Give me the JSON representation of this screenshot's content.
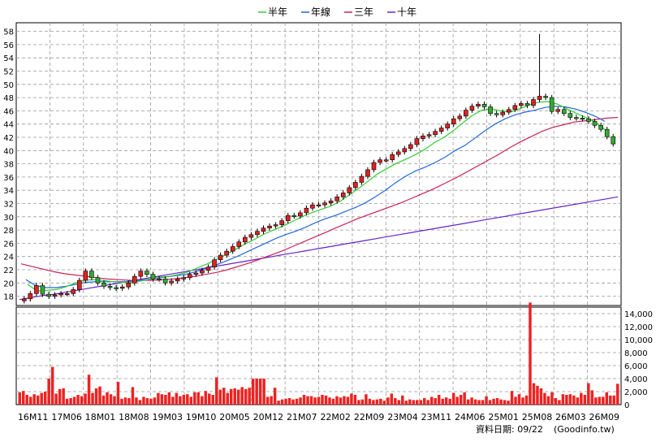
{
  "chart_data": [
    {
      "type": "candlestick",
      "panel": "price",
      "legend": {
        "placement": "top-center",
        "items": [
          {
            "name": "半年",
            "color": "#33cc33"
          },
          {
            "name": "年線",
            "color": "#2266dd"
          },
          {
            "name": "三年",
            "color": "#cc2255"
          },
          {
            "name": "十年",
            "color": "#6622cc"
          }
        ]
      },
      "y_ticks": [
        "58",
        "56",
        "54",
        "52",
        "50",
        "48",
        "46",
        "44",
        "42",
        "40",
        "38",
        "36",
        "34",
        "32",
        "30",
        "28",
        "26",
        "24",
        "22",
        "20",
        "18"
      ],
      "ylim": [
        16.6,
        59.3
      ],
      "grid": true,
      "up_color": "#dd2222",
      "down_color": "#33aa33",
      "prices": [
        17.6,
        18.4,
        19.6,
        18.3,
        18.0,
        18.2,
        18.4,
        18.4,
        19.0,
        20.4,
        21.8,
        20.8,
        20.0,
        19.5,
        19.3,
        19.2,
        19.4,
        20.0,
        21.0,
        21.8,
        21.3,
        20.6,
        20.6,
        20.0,
        20.3,
        20.6,
        20.8,
        21.3,
        21.5,
        21.9,
        22.4,
        23.5,
        24.2,
        24.8,
        25.5,
        26.2,
        26.9,
        27.3,
        27.8,
        28.3,
        28.6,
        28.8,
        29.4,
        30.2,
        30.1,
        30.6,
        31.3,
        31.8,
        31.8,
        32.1,
        32.4,
        33.0,
        33.6,
        34.4,
        35.2,
        36.1,
        37.1,
        38.2,
        38.6,
        38.6,
        39.4,
        39.8,
        40.3,
        40.9,
        41.8,
        42.2,
        42.4,
        42.9,
        43.4,
        44.0,
        44.8,
        45.2,
        46.1,
        46.7,
        47.0,
        46.6,
        45.6,
        45.4,
        45.8,
        46.2,
        46.8,
        47.1,
        46.8,
        47.7,
        48.2,
        48.0,
        45.9,
        46.2,
        45.6,
        45.0,
        44.9,
        44.8,
        44.4,
        43.8,
        43.2,
        42.1,
        41.0
      ],
      "ma_half_year": [
        19.8,
        18.8,
        18.9,
        19.0,
        19.4,
        20.0,
        20.4,
        20.5,
        20.4,
        20.2,
        20.1,
        20.1,
        20.3,
        20.6,
        20.9,
        21.0,
        21.3,
        21.7,
        22.3,
        22.9,
        23.6,
        24.3,
        25.1,
        25.9,
        26.6,
        27.4,
        28.0,
        28.6,
        29.3,
        30.0,
        30.6,
        31.1,
        31.6,
        32.3,
        33.3,
        34.3,
        35.4,
        36.5,
        37.3,
        38.1,
        38.7,
        39.4,
        40.2,
        41.2,
        42.0,
        43.0,
        44.2,
        45.3,
        46.1,
        46.3,
        46.0,
        45.8,
        46.3,
        46.9,
        47.3,
        47.4,
        47.0,
        46.3,
        45.6,
        45.0,
        44.3,
        43.2
      ],
      "ma_year": [
        20.5,
        19.6,
        19.3,
        19.3,
        19.5,
        19.8,
        20.1,
        20.2,
        20.2,
        20.2,
        20.2,
        20.3,
        20.5,
        20.7,
        20.9,
        21.1,
        21.3,
        21.7,
        22.2,
        22.7,
        23.3,
        23.9,
        24.6,
        25.3,
        26.0,
        26.7,
        27.3,
        27.8,
        28.4,
        29.1,
        29.7,
        30.2,
        30.8,
        31.4,
        32.1,
        33.0,
        34.0,
        35.1,
        36.1,
        36.9,
        37.5,
        38.2,
        39.0,
        40.0,
        40.8,
        41.9,
        43.0,
        44.0,
        44.8,
        45.4,
        45.8,
        46.1,
        46.5,
        46.7,
        46.6,
        46.3,
        45.8,
        45.2,
        44.4
      ],
      "ma_three_year": [
        22.9,
        22.5,
        22.1,
        21.7,
        21.4,
        21.2,
        21.0,
        20.8,
        20.6,
        20.5,
        20.4,
        20.4,
        20.4,
        20.5,
        20.6,
        20.8,
        21.0,
        21.3,
        21.6,
        22.0,
        22.5,
        23.0,
        23.6,
        24.2,
        24.8,
        25.5,
        26.2,
        26.9,
        27.6,
        28.3,
        29.0,
        29.7,
        30.3,
        30.9,
        31.5,
        32.1,
        32.8,
        33.5,
        34.2,
        35.0,
        35.8,
        36.7,
        37.6,
        38.5,
        39.4,
        40.4,
        41.3,
        42.1,
        42.9,
        43.5,
        43.9,
        44.3,
        44.5,
        44.7,
        44.9,
        45.0
      ],
      "ma_ten_year": [
        17.5,
        17.8,
        18.1,
        18.3,
        18.6,
        18.9,
        19.2,
        19.5,
        19.8,
        20.1,
        20.4,
        20.7,
        21.0,
        21.3,
        21.6,
        21.9,
        22.2,
        22.5,
        22.8,
        23.1,
        23.4,
        23.7,
        24.0,
        24.3,
        24.6,
        24.9,
        25.2,
        25.5,
        25.8,
        26.1,
        26.4,
        26.7,
        27.0,
        27.3,
        27.6,
        27.9,
        28.2,
        28.5,
        28.8,
        29.1,
        29.4,
        29.7,
        30.0,
        30.3,
        30.6,
        30.9,
        31.2,
        31.5,
        31.8,
        32.1,
        32.4,
        32.7,
        33.0
      ]
    },
    {
      "type": "bar",
      "panel": "volume",
      "y_ticks": [
        "14,000",
        "12,000",
        "10,000",
        "8,000",
        "6,000",
        "4,000",
        "2,000",
        "0"
      ],
      "ylim": [
        0,
        15000
      ],
      "grid": true,
      "bar_color": "#ee2222",
      "values": [
        1900,
        2100,
        1500,
        1200,
        1600,
        1400,
        1800,
        2000,
        4000,
        5800,
        1700,
        2400,
        2500,
        900,
        1000,
        1200,
        1500,
        1300,
        1700,
        4600,
        1800,
        2500,
        2800,
        1400,
        1900,
        1600,
        1300,
        3500,
        900,
        1100,
        1000,
        2700,
        1100,
        700,
        1200,
        1000,
        900,
        1100,
        1800,
        1600,
        1500,
        1900,
        1200,
        1800,
        1300,
        1500,
        1600,
        1200,
        1900,
        1900,
        1300,
        2100,
        1700,
        1500,
        4200,
        2300,
        2600,
        1800,
        2400,
        2500,
        2300,
        2700,
        2400,
        2600,
        4000,
        4000,
        4000,
        4000,
        1200,
        1300,
        2600,
        600,
        800,
        900,
        1000,
        800,
        900,
        1100,
        1500,
        1300,
        1300,
        1100,
        1200,
        1500,
        1400,
        1100,
        900,
        1300,
        1100,
        1300,
        1200,
        1700,
        1500,
        700,
        800,
        1600,
        900,
        700,
        800,
        900,
        600,
        1100,
        1700,
        1000,
        700,
        1400,
        600,
        800,
        700,
        700,
        700,
        1000,
        700,
        1200,
        1000,
        1500,
        900,
        1100,
        900,
        1800,
        1200,
        1500,
        1900,
        800,
        1100,
        800,
        700,
        700,
        1300,
        700,
        900,
        1000,
        800,
        700,
        600,
        2100,
        1200,
        1600,
        1100,
        1400,
        15700,
        3300,
        2900,
        2500,
        1800,
        1300,
        1900,
        1000,
        700,
        1600,
        1500,
        1600,
        1400,
        1100,
        1800,
        1500,
        3300,
        2200,
        1100,
        1200,
        1200,
        1900,
        1400,
        1400,
        3200
      ]
    }
  ],
  "x_labels": [
    "16M11",
    "17M06",
    "18M01",
    "18M08",
    "19M03",
    "19M10",
    "20M05",
    "20M12",
    "21M07",
    "22M02",
    "22M09",
    "23M04",
    "23M11",
    "24M06",
    "25M01",
    "25M08",
    "26M03",
    "26M09"
  ],
  "footer": {
    "date_text": "資料日期: 09/22",
    "source_text": "(Goodinfo.tw)"
  }
}
